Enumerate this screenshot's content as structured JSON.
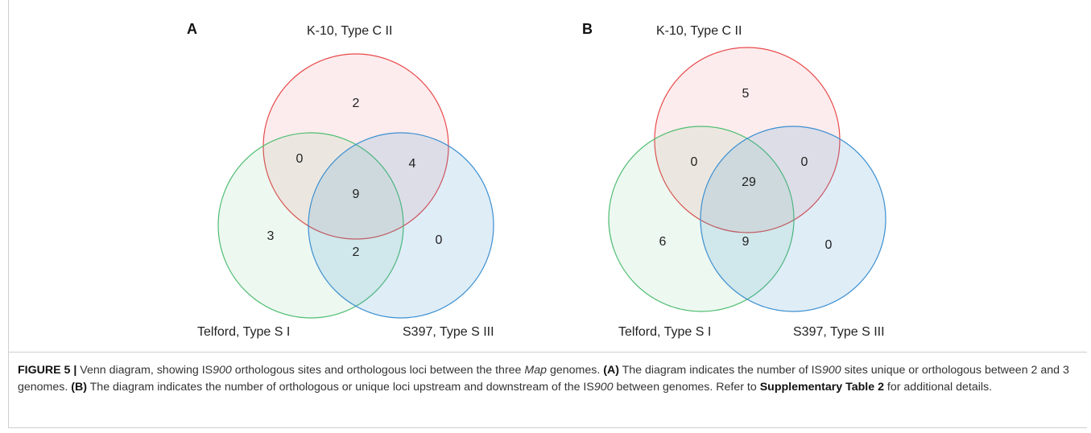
{
  "figure": {
    "caption": {
      "label": "FIGURE 5 |",
      "t1": " Venn diagram, showing IS",
      "t1i": "900",
      "t2": " orthologous sites and orthologous loci between the three ",
      "t2i": "Map",
      "t3": " genomes. ",
      "t3b": "(A)",
      "t4": " The diagram indicates the number of IS",
      "t4i": "900",
      "t5": " sites unique or orthologous between 2 and 3 genomes. ",
      "t5b": "(B)",
      "t6": " The diagram indicates the number of orthologous or unique loci upstream and downstream of the IS",
      "t6i": "900",
      "t7": " between genomes. Refer to ",
      "t7b": "Supplementary Table 2",
      "t8": " for additional details."
    }
  },
  "colors": {
    "red_set": "#e8494b",
    "green_set": "#4fbd72",
    "blue_set": "#3b8fd0"
  },
  "panels": [
    {
      "id": "A",
      "label": "A",
      "sets": {
        "top": "K-10, Type C II",
        "left": "Telford, Type S I",
        "right": "S397, Type S III"
      },
      "regions": {
        "top_only": "2",
        "left_only": "3",
        "right_only": "0",
        "top_left": "0",
        "top_right": "4",
        "left_right": "2",
        "all": "9"
      }
    },
    {
      "id": "B",
      "label": "B",
      "sets": {
        "top": "K-10, Type C II",
        "left": "Telford, Type S I",
        "right": "S397, Type S III"
      },
      "regions": {
        "top_only": "5",
        "left_only": "6",
        "right_only": "0",
        "top_left": "0",
        "top_right": "0",
        "left_right": "9",
        "all": "29"
      }
    }
  ]
}
